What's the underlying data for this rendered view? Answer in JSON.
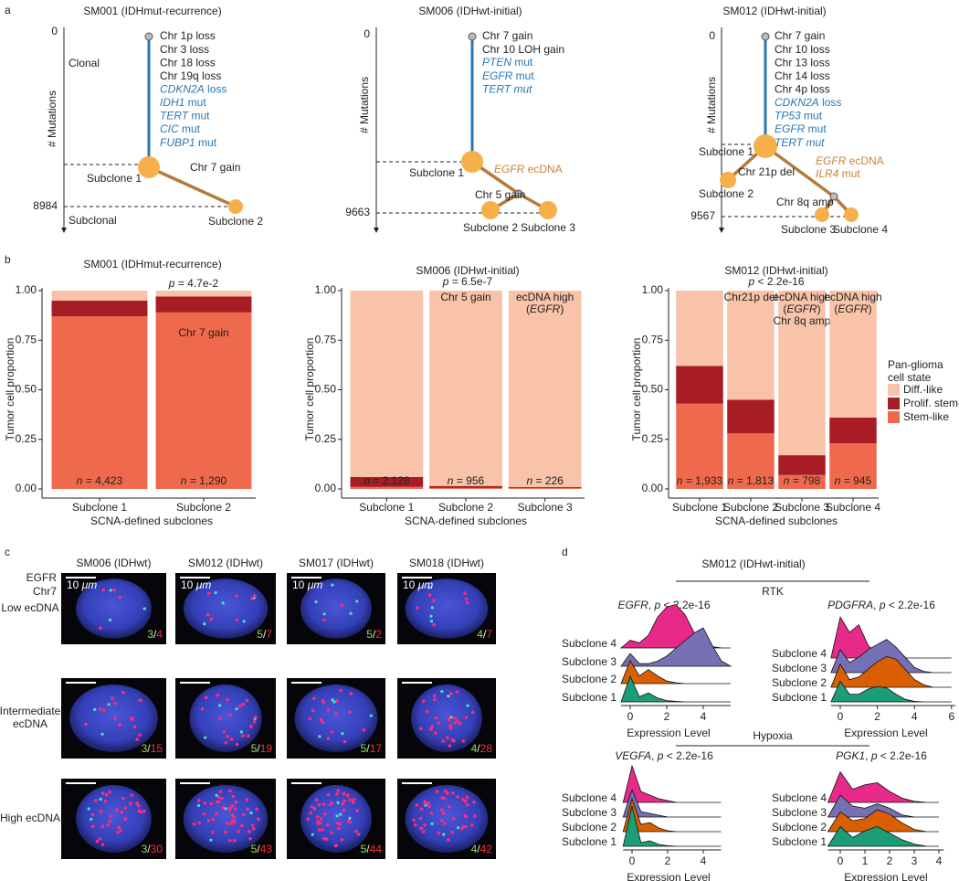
{
  "panel_labels": [
    "a",
    "b",
    "c",
    "d"
  ],
  "panel_a": [
    {
      "title": "SM001 (IDHmut-recurrence)",
      "ylabel": "# Mutations",
      "axis_top": 0,
      "axis_bottom": 8984,
      "phases": [
        "Clonal",
        "Subclonal"
      ],
      "events": [
        "Chr 1p loss",
        "Chr 3 loss",
        "Chr 18 loss",
        "Chr 19q loss",
        [
          {
            "italic": "CDKN2A"
          },
          " loss"
        ],
        [
          {
            "italic": "IDH1"
          },
          " mut"
        ],
        [
          {
            "italic": "TERT"
          },
          " mut"
        ],
        [
          {
            "italic": "CIC"
          },
          " mut"
        ],
        [
          {
            "italic": "FUBP1"
          },
          " mut"
        ]
      ],
      "subclones": [
        "Subclone 1",
        "Subclone 2"
      ],
      "branch_events": [
        "Chr 7 gain"
      ]
    },
    {
      "title": "SM006 (IDHwt-initial)",
      "ylabel": "# Mutations",
      "axis_top": 0,
      "axis_bottom": 9663,
      "events": [
        "Chr 7 gain",
        "Chr 10 LOH gain",
        [
          {
            "italic": "PTEN"
          },
          " mut"
        ],
        [
          {
            "italic": "EGFR"
          },
          " mut"
        ],
        [
          {
            "italic": "TERT mut"
          }
        ]
      ],
      "subclones": [
        "Subclone 1",
        "Subclone 2",
        "Subclone 3"
      ],
      "branch_events": [
        [
          {
            "italic": "EGFR"
          },
          " ecDNA"
        ],
        "Chr 5 gain"
      ]
    },
    {
      "title": "SM012 (IDHwt-initial)",
      "ylabel": "# Mutations",
      "axis_top": 0,
      "axis_bottom": 9567,
      "events": [
        "Chr 7 gain",
        "Chr 10 loss",
        "Chr 13 loss",
        "Chr 14 loss",
        "Chr 4p loss",
        [
          {
            "italic": "CDKN2A"
          },
          " loss"
        ],
        [
          {
            "italic": "TP53"
          },
          " mut"
        ],
        [
          {
            "italic": "EGFR"
          },
          " mut"
        ],
        [
          {
            "italic": "TERT mut"
          }
        ]
      ],
      "subclones": [
        "Subclone 1",
        "Subclone 2",
        "Subclone 3",
        "Subclone 4"
      ],
      "branch_events": [
        "Chr 21p del",
        [
          {
            "italic": "EGFR"
          },
          " ecDNA"
        ],
        [
          {
            "italic": "ILR4"
          },
          " mut"
        ],
        "Chr 8q amp"
      ]
    }
  ],
  "chart_data": [
    {
      "type": "stacked_bar",
      "title": "SM001 (IDHmut-recurrence)",
      "pvalue": [
        {
          "italic": "p"
        },
        " = 4.7e-2"
      ],
      "ylabel": "Tumor cell proportion",
      "xlabel": "SCNA-defined subclones",
      "categories": [
        "Subclone 1",
        "Subclone 2"
      ],
      "n_labels": [
        [
          {
            "italic": "n"
          },
          " = 4,423"
        ],
        [
          {
            "italic": "n"
          },
          " = 1,290"
        ]
      ],
      "bar_labels": [
        null,
        [
          "Chr 7 gain"
        ]
      ],
      "ylim": [
        0,
        1
      ],
      "yticks": [
        {
          "value": 0,
          "label": "0.00"
        },
        {
          "value": 0.25,
          "label": "0.25"
        },
        {
          "value": 0.5,
          "label": "0.50"
        },
        {
          "value": 0.75,
          "label": "0.75"
        },
        {
          "value": 1,
          "label": "1.00"
        }
      ],
      "series": [
        {
          "color": "#f8c3a8",
          "values": [
            0.05,
            0.03
          ]
        },
        {
          "color": "#a81d25",
          "values": [
            0.08,
            0.08
          ]
        },
        {
          "color": "#ef6a4c",
          "values": [
            0.87,
            0.89
          ]
        }
      ]
    },
    {
      "type": "stacked_bar",
      "title": "SM006 (IDHwt-initial)",
      "pvalue": [
        {
          "italic": "p"
        },
        " = 6.5e-7"
      ],
      "ylabel": "Tumor cell proportion",
      "xlabel": "SCNA-defined subclones",
      "categories": [
        "Subclone 1",
        "Subclone 2",
        "Subclone 3"
      ],
      "n_labels": [
        [
          {
            "italic": "n"
          },
          " = 2,128"
        ],
        [
          {
            "italic": "n"
          },
          " = 956"
        ],
        [
          {
            "italic": "n"
          },
          " = 226"
        ]
      ],
      "bar_labels": [
        null,
        [
          "Chr 5 gain"
        ],
        [
          "ecDNA high",
          [
            "(",
            {
              "italic": "EGFR"
            },
            ")"
          ]
        ]
      ],
      "ylim": [
        0,
        1
      ],
      "yticks": [
        {
          "value": 0,
          "label": "0.00"
        },
        {
          "value": 0.25,
          "label": "0.25"
        },
        {
          "value": 0.5,
          "label": "0.50"
        },
        {
          "value": 0.75,
          "label": "0.75"
        },
        {
          "value": 1,
          "label": "1.00"
        }
      ],
      "series": [
        {
          "color": "#f8c3a8",
          "values": [
            0.94,
            0.985,
            0.99
          ]
        },
        {
          "color": "#a81d25",
          "values": [
            0.05,
            0.01,
            0.005
          ]
        },
        {
          "color": "#ef6a4c",
          "values": [
            0.01,
            0.005,
            0.005
          ]
        }
      ]
    },
    {
      "type": "stacked_bar",
      "title": "SM012 (IDHwt-initial)",
      "pvalue": [
        {
          "italic": "p"
        },
        " < 2.2e-16"
      ],
      "ylabel": "Tumor cell proportion",
      "xlabel": "SCNA-defined subclones",
      "categories": [
        "Subclone 1",
        "Subclone 2",
        "Subclone 3",
        "Subclone 4"
      ],
      "n_labels": [
        [
          {
            "italic": "n"
          },
          " = 1,933"
        ],
        [
          {
            "italic": "n"
          },
          " = 1,813"
        ],
        [
          {
            "italic": "n"
          },
          " = 798"
        ],
        [
          {
            "italic": "n"
          },
          " = 945"
        ]
      ],
      "bar_labels": [
        null,
        [
          "Chr21p del"
        ],
        [
          "ecDNA high",
          [
            "(",
            {
              "italic": "EGFR"
            },
            ")"
          ],
          "Chr 8q amp"
        ],
        [
          "ecDNA high",
          [
            "(",
            {
              "italic": "EGFR"
            },
            ")"
          ]
        ]
      ],
      "legend_title": [
        "Pan-glioma",
        "cell state"
      ],
      "ylim": [
        0,
        1
      ],
      "yticks": [
        {
          "value": 0,
          "label": "0.00"
        },
        {
          "value": 0.25,
          "label": "0.25"
        },
        {
          "value": 0.5,
          "label": "0.50"
        },
        {
          "value": 0.75,
          "label": "0.75"
        },
        {
          "value": 1,
          "label": "1.00"
        }
      ],
      "series": [
        {
          "name": "Diff.-like",
          "color": "#f8c3a8",
          "values": [
            0.38,
            0.55,
            0.83,
            0.64
          ]
        },
        {
          "name": "Prolif. stem-like",
          "color": "#a81d25",
          "values": [
            0.19,
            0.17,
            0.1,
            0.13
          ]
        },
        {
          "name": "Stem-like",
          "color": "#ef6a4c",
          "values": [
            0.43,
            0.28,
            0.07,
            0.23
          ]
        }
      ]
    },
    {
      "type": "ridgeline",
      "title": [
        {
          "italic": "EGFR"
        },
        ", ",
        {
          "italic": "p"
        },
        " < 2.2e-16"
      ],
      "xlabel": "Expression Level",
      "xlim": [
        -0.5,
        5.5
      ],
      "xticks": [
        0,
        2,
        4
      ],
      "x": [
        -0.5,
        0,
        0.5,
        1,
        1.5,
        2,
        2.5,
        3,
        3.5,
        4,
        4.5,
        5,
        5.5
      ],
      "series": [
        {
          "name": "Subclone 1",
          "color": "#1b9e77",
          "values": [
            0,
            1.0,
            0.2,
            0.35,
            0.15,
            0.05,
            0.02,
            0,
            0,
            0,
            0,
            0,
            0
          ]
        },
        {
          "name": "Subclone 2",
          "color": "#d95f02",
          "values": [
            0,
            0.9,
            0.3,
            0.55,
            0.3,
            0.1,
            0.03,
            0,
            0,
            0,
            0,
            0,
            0
          ]
        },
        {
          "name": "Subclone 3",
          "color": "#7570b3",
          "values": [
            0,
            0.5,
            0.1,
            0.1,
            0.2,
            0.4,
            0.7,
            1.0,
            1.3,
            1.5,
            0.8,
            0.2,
            0
          ]
        },
        {
          "name": "Subclone 4",
          "color": "#e7298a",
          "values": [
            0,
            0.3,
            0.2,
            0.5,
            1.2,
            1.6,
            1.7,
            1.3,
            0.6,
            0.2,
            0.05,
            0,
            0
          ]
        }
      ]
    },
    {
      "type": "ridgeline",
      "title": [
        {
          "italic": "PDGFRA"
        },
        ", ",
        {
          "italic": "p"
        },
        " < 2.2e-16"
      ],
      "xlabel": "Expression Level",
      "xlim": [
        -0.5,
        6.2
      ],
      "xticks": [
        0,
        2,
        4,
        6
      ],
      "x": [
        -0.5,
        0,
        0.5,
        1,
        1.5,
        2,
        2.5,
        3,
        3.5,
        4,
        4.5,
        5,
        5.5,
        6
      ],
      "series": [
        {
          "name": "Subclone 1",
          "color": "#1b9e77",
          "values": [
            0,
            0.8,
            0.3,
            0.3,
            0.5,
            0.6,
            0.55,
            0.3,
            0.1,
            0.02,
            0,
            0,
            0,
            0
          ]
        },
        {
          "name": "Subclone 2",
          "color": "#d95f02",
          "values": [
            0,
            0.9,
            0.3,
            0.4,
            0.7,
            1.0,
            1.2,
            1.1,
            0.7,
            0.3,
            0.1,
            0,
            0,
            0
          ]
        },
        {
          "name": "Subclone 3",
          "color": "#7570b3",
          "values": [
            0,
            0.9,
            0.4,
            0.6,
            0.9,
            1.1,
            1.3,
            1.0,
            0.6,
            0.2,
            0.05,
            0,
            0,
            0
          ]
        },
        {
          "name": "Subclone 4",
          "color": "#e7298a",
          "values": [
            0,
            1.6,
            1.0,
            1.3,
            0.5,
            0.1,
            0,
            0,
            0,
            0,
            0,
            0,
            0,
            0
          ]
        }
      ]
    },
    {
      "type": "ridgeline",
      "title": [
        {
          "italic": "VEGFA"
        },
        ", ",
        {
          "italic": "p"
        },
        " < 2.2e-16"
      ],
      "xlabel": "Expression Level",
      "xlim": [
        -0.5,
        5
      ],
      "xticks": [
        0,
        2,
        4
      ],
      "x": [
        -0.5,
        0,
        0.5,
        1,
        1.5,
        2,
        2.5,
        3,
        3.5,
        4,
        4.5,
        5
      ],
      "series": [
        {
          "name": "Subclone 1",
          "color": "#1b9e77",
          "values": [
            0,
            2.2,
            0.2,
            0.3,
            0.1,
            0.03,
            0,
            0,
            0,
            0,
            0,
            0
          ]
        },
        {
          "name": "Subclone 2",
          "color": "#d95f02",
          "values": [
            0,
            1.8,
            0.4,
            0.5,
            0.2,
            0.05,
            0,
            0,
            0,
            0,
            0,
            0
          ]
        },
        {
          "name": "Subclone 3",
          "color": "#7570b3",
          "values": [
            0,
            1.5,
            0.3,
            0.2,
            0.1,
            0,
            0,
            0,
            0,
            0,
            0,
            0
          ]
        },
        {
          "name": "Subclone 4",
          "color": "#e7298a",
          "values": [
            0,
            2.0,
            0.6,
            0.4,
            0.2,
            0.1,
            0,
            0,
            0,
            0,
            0,
            0
          ]
        }
      ]
    },
    {
      "type": "ridgeline",
      "title": [
        {
          "italic": "PGK1"
        },
        ", ",
        {
          "italic": "p"
        },
        " < 2.2e-16"
      ],
      "xlabel": "Expression Level",
      "xlim": [
        -0.5,
        4.2
      ],
      "xticks": [
        0,
        1,
        2,
        3,
        4
      ],
      "x": [
        -0.5,
        0,
        0.5,
        1,
        1.5,
        2,
        2.5,
        3,
        3.5,
        4
      ],
      "series": [
        {
          "name": "Subclone 1",
          "color": "#1b9e77",
          "values": [
            0,
            0.9,
            0.4,
            0.7,
            0.9,
            0.6,
            0.3,
            0.1,
            0,
            0
          ]
        },
        {
          "name": "Subclone 2",
          "color": "#d95f02",
          "values": [
            0,
            0.9,
            0.5,
            0.6,
            1.0,
            0.8,
            0.4,
            0.1,
            0,
            0
          ]
        },
        {
          "name": "Subclone 3",
          "color": "#7570b3",
          "values": [
            0,
            1.0,
            0.5,
            0.4,
            0.6,
            0.4,
            0.1,
            0,
            0,
            0
          ]
        },
        {
          "name": "Subclone 4",
          "color": "#e7298a",
          "values": [
            0,
            1.4,
            0.6,
            0.8,
            0.9,
            0.5,
            0.2,
            0.05,
            0,
            0
          ]
        }
      ]
    }
  ],
  "panel_c": {
    "legend": [
      "EGFR",
      "Chr7"
    ],
    "columns": [
      "SM006 (IDHwt)",
      "SM012 (IDHwt)",
      "SM017 (IDHwt)",
      "SM018 (IDHwt)"
    ],
    "rows": [
      [
        "Low ecDNA"
      ],
      [
        "Intermediate",
        "ecDNA"
      ],
      [
        "High ecDNA"
      ]
    ],
    "scale_label": [
      "10 ",
      {
        "italic": "μm"
      }
    ],
    "separator": "/",
    "counts": [
      [
        [
          3,
          4
        ],
        [
          5,
          7
        ],
        [
          5,
          2
        ],
        [
          4,
          7
        ]
      ],
      [
        [
          3,
          15
        ],
        [
          5,
          19
        ],
        [
          5,
          17
        ],
        [
          4,
          28
        ]
      ],
      [
        [
          3,
          30
        ],
        [
          5,
          43
        ],
        [
          5,
          44
        ],
        [
          4,
          42
        ]
      ]
    ]
  },
  "panel_d": {
    "title": "SM012 (IDHwt-initial)",
    "groups": [
      "RTK",
      "Hypoxia"
    ]
  }
}
